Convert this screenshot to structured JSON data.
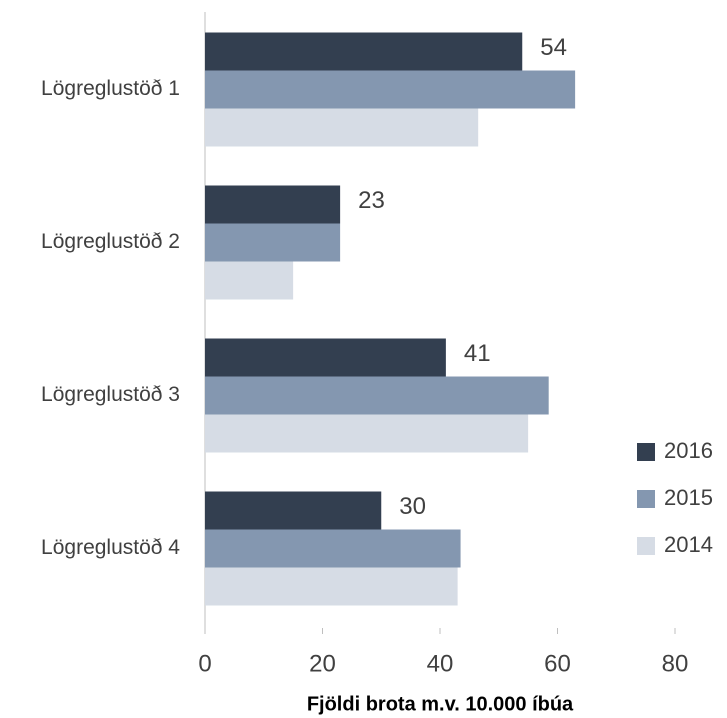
{
  "chart_data": {
    "type": "hbar",
    "xlabel": "Fjöldi brota m.v. 10.000 íbúa",
    "categories": [
      "Lögreglustöð 1",
      "Lögreglustöð 2",
      "Lögreglustöð 3",
      "Lögreglustöð 4"
    ],
    "series": [
      {
        "name": "2016",
        "color": "#333f50",
        "values": [
          54,
          23,
          41,
          30
        ],
        "data_labels": true
      },
      {
        "name": "2015",
        "color": "#8497b0",
        "values": [
          63,
          23,
          58.5,
          43.5
        ]
      },
      {
        "name": "2014",
        "color": "#d6dce5",
        "values": [
          46.5,
          15,
          55,
          43
        ]
      }
    ],
    "xlim": [
      0,
      80
    ],
    "xticks": [
      0,
      20,
      40,
      60,
      80
    ],
    "grid": false,
    "legend": "right"
  }
}
